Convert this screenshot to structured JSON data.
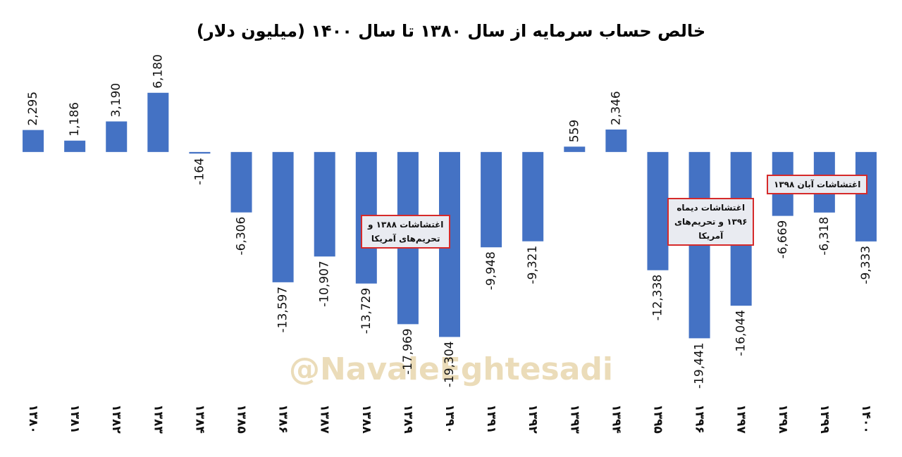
{
  "chart_data": {
    "type": "bar",
    "title": "خالص حساب سرمایه از سال ۱۳۸۰ تا سال ۱۴۰۰ (میلیون دلار)",
    "categories": [
      "۱۳۸۰",
      "۱۳۸۱",
      "۱۳۸۲",
      "۱۳۸۳",
      "۱۳۸۴",
      "۱۳۸۵",
      "۱۳۸۶",
      "۱۳۸۷",
      "۱۳۸۸",
      "۱۳۸۹",
      "۱۳۹۰",
      "۱۳۹۱",
      "۱۳۹۲",
      "۱۳۹۳",
      "۱۳۹۴",
      "۱۳۹۵",
      "۱۳۹۶",
      "۱۳۹۷",
      "۱۳۹۸",
      "۱۳۹۹",
      "۱۴۰۰"
    ],
    "values": [
      2295,
      1186,
      3190,
      6180,
      -164,
      -6306,
      -13597,
      -10907,
      -13729,
      -17969,
      -19304,
      -9948,
      -9321,
      559,
      2346,
      -12338,
      -19441,
      -16044,
      -6669,
      -6318,
      -9333
    ],
    "value_labels": [
      "2,295",
      "1,186",
      "3,190",
      "6,180",
      "-164",
      "-6,306",
      "-13,597",
      "-10,907",
      "-13,729",
      "-17,969",
      "-19,304",
      "-9,948",
      "-9,321",
      "559",
      "2,346",
      "-12,338",
      "-19,441",
      "-16,044",
      "-6,669",
      "-6,318",
      "-9,333"
    ],
    "color": "#4472c4",
    "ylim": [
      -20000,
      8000
    ],
    "annotations": [
      [
        "اغتشاشات ۱۳۸۸ و",
        "تحریم‌های آمریکا"
      ],
      [
        "اغتشاشات دیماه",
        "۱۳۹۶ و تحریم‌های",
        "آمریکا"
      ],
      [
        "اغتشاشات آبان ۱۳۹۸"
      ]
    ],
    "watermark": "@NavaleEghtesadi"
  }
}
